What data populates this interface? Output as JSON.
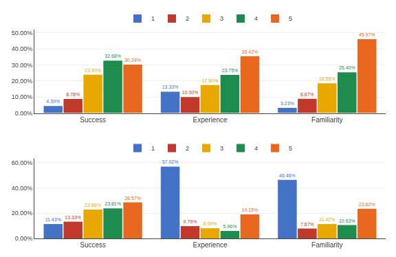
{
  "chart_data": [
    {
      "type": "bar",
      "categories": [
        "Success",
        "Experience",
        "Familiarity"
      ],
      "series": [
        {
          "name": "1",
          "color": "#4472C4",
          "values": [
            4.39,
            13.33,
            3.23
          ],
          "value_labels": [
            "4.39%",
            "13.33%",
            "3.23%"
          ]
        },
        {
          "name": "2",
          "color": "#C0392B",
          "values": [
            8.78,
            10.0,
            8.87
          ],
          "value_labels": [
            "8.78%",
            "10.00%",
            "8.87%"
          ]
        },
        {
          "name": "3",
          "color": "#E8A800",
          "values": [
            23.9,
            17.5,
            18.55
          ],
          "value_labels": [
            "23.90%",
            "17.50%",
            "18.55%"
          ]
        },
        {
          "name": "4",
          "color": "#1E8C4E",
          "values": [
            32.68,
            23.75,
            25.4
          ],
          "value_labels": [
            "32.68%",
            "23.75%",
            "25.40%"
          ]
        },
        {
          "name": "5",
          "color": "#E86820",
          "values": [
            30.24,
            35.42,
            45.97
          ],
          "value_labels": [
            "30.24%",
            "35.42%",
            "45.97%"
          ]
        }
      ],
      "ylim": [
        0,
        52
      ],
      "yticks": [
        {
          "value": 0,
          "label": "0.00%"
        },
        {
          "value": 10,
          "label": "10.00%"
        },
        {
          "value": 20,
          "label": "20.00%"
        },
        {
          "value": 30,
          "label": "30.00%"
        },
        {
          "value": 40,
          "label": "40.00%"
        },
        {
          "value": 50,
          "label": "50.00%"
        }
      ],
      "grid": true,
      "legend": "top",
      "data_labels": true
    },
    {
      "type": "bar",
      "categories": [
        "Success",
        "Experience",
        "Familiarity"
      ],
      "series": [
        {
          "name": "1",
          "color": "#4472C4",
          "values": [
            11.43,
            57.02,
            46.46
          ],
          "value_labels": [
            "11.43%",
            "57.02%",
            "46.46%"
          ]
        },
        {
          "name": "2",
          "color": "#C0392B",
          "values": [
            13.33,
            9.79,
            7.87
          ],
          "value_labels": [
            "13.33%",
            "9.79%",
            "7.87%"
          ]
        },
        {
          "name": "3",
          "color": "#E8A800",
          "values": [
            22.86,
            8.09,
            11.42
          ],
          "value_labels": [
            "22.86%",
            "8.09%",
            "11.42%"
          ]
        },
        {
          "name": "4",
          "color": "#1E8C4E",
          "values": [
            23.81,
            5.96,
            10.63
          ],
          "value_labels": [
            "23.81%",
            "5.96%",
            "10.63%"
          ]
        },
        {
          "name": "5",
          "color": "#E86820",
          "values": [
            28.57,
            19.15,
            23.62
          ],
          "value_labels": [
            "28.57%",
            "19.15%",
            "23.62%"
          ]
        }
      ],
      "ylim": [
        0,
        63
      ],
      "yticks": [
        {
          "value": 0,
          "label": "0.00%"
        },
        {
          "value": 20,
          "label": "20.00%"
        },
        {
          "value": 40,
          "label": "40.00%"
        },
        {
          "value": 60,
          "label": "60.00%"
        }
      ],
      "grid": true,
      "legend": "top",
      "data_labels": true
    }
  ]
}
